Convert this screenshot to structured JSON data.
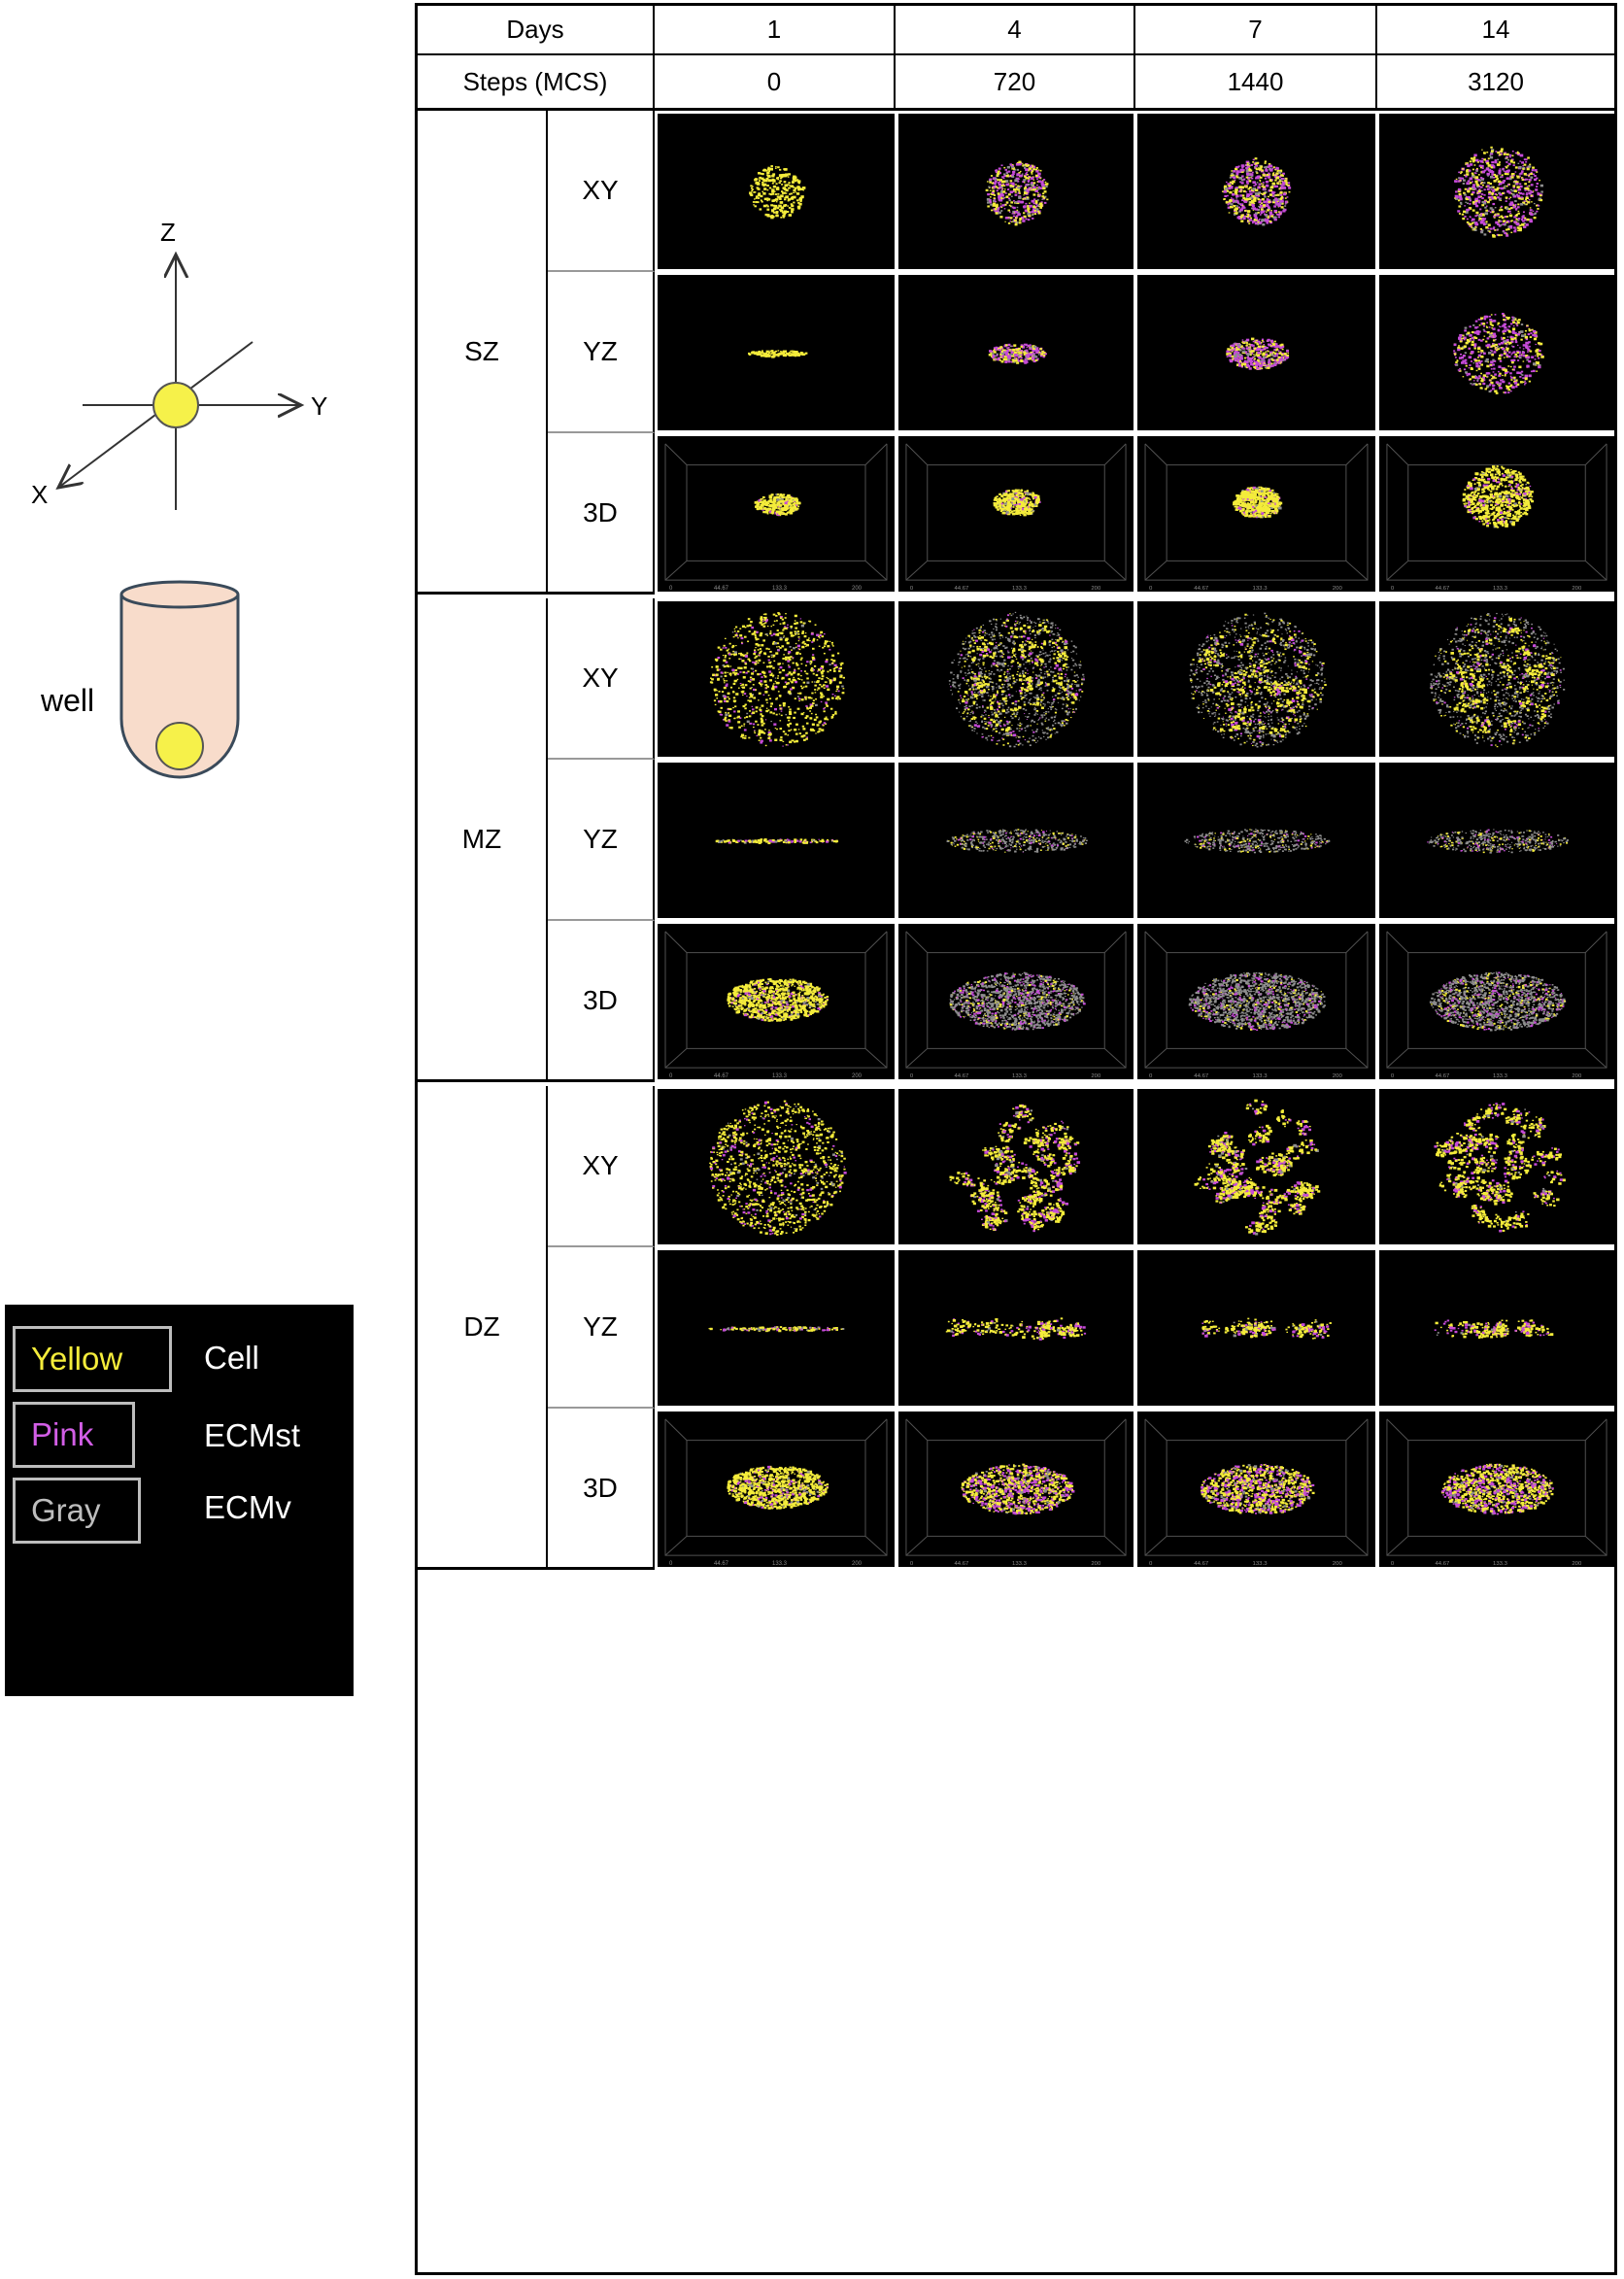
{
  "illustration": {
    "axes": {
      "z": "Z",
      "y": "Y",
      "x": "X"
    },
    "well_label": "well"
  },
  "legend": {
    "items": [
      {
        "swatch": "Yellow",
        "swatch_color": "#f4ec3b",
        "name": "Cell"
      },
      {
        "swatch": "Pink",
        "swatch_color": "#d25ee6",
        "name": "ECMst"
      },
      {
        "swatch": "Gray",
        "swatch_color": "#bdbdbd",
        "name": "ECMv"
      }
    ]
  },
  "table": {
    "header_days_label": "Days",
    "header_steps_label": "Steps (MCS)",
    "days": [
      "1",
      "4",
      "7",
      "14"
    ],
    "steps": [
      "0",
      "720",
      "1440",
      "3120"
    ],
    "groups": [
      {
        "name": "SZ",
        "views": [
          "XY",
          "YZ",
          "3D"
        ]
      },
      {
        "name": "MZ",
        "views": [
          "XY",
          "YZ",
          "3D"
        ]
      },
      {
        "name": "DZ",
        "views": [
          "XY",
          "YZ",
          "3D"
        ]
      }
    ],
    "axis_ticks_3d": [
      "0",
      "44.67",
      "133.3",
      "200"
    ]
  },
  "colors": {
    "cell": "#f4ec3b",
    "ecm_st": "#c64bd8",
    "ecm_v": "#8e8e8e",
    "sphere": "#f6f14a",
    "well": "#f8dccb"
  }
}
